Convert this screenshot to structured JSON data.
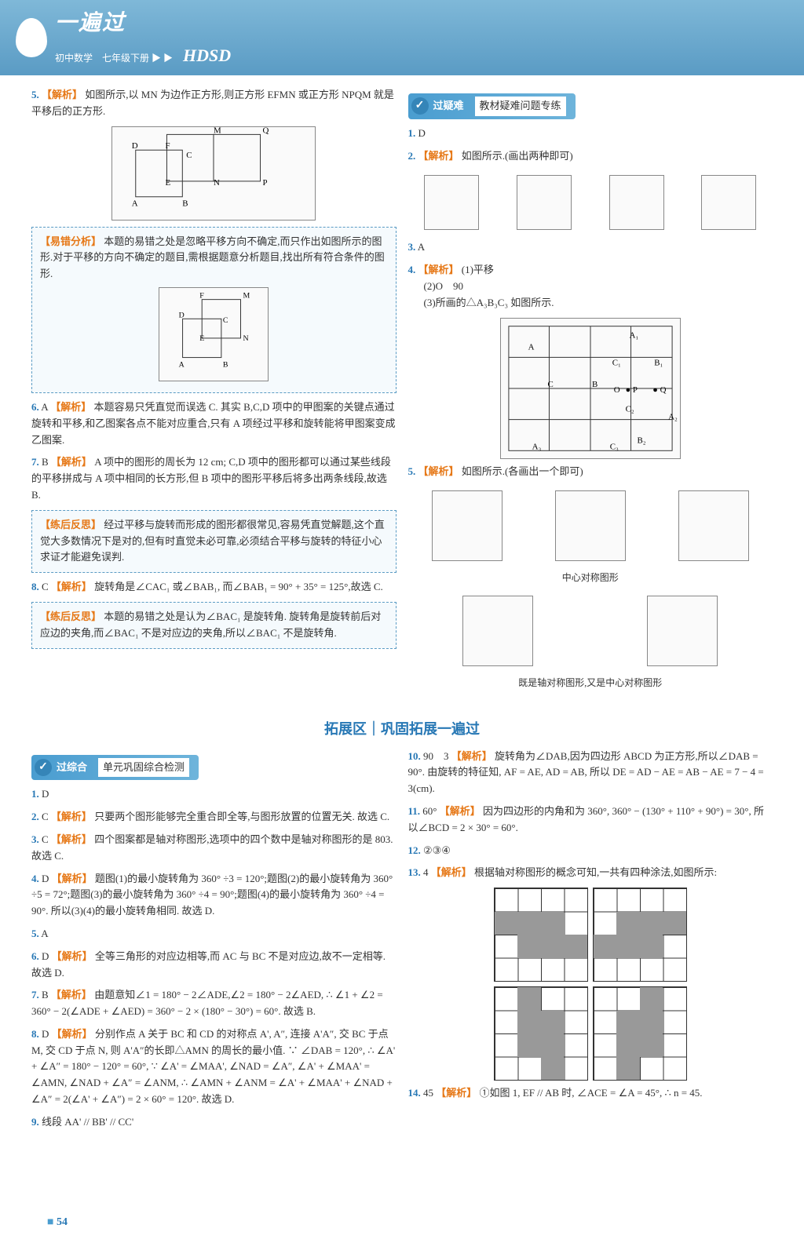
{
  "header": {
    "title": "一遍过",
    "subtitle": "初中数学　七年级下册",
    "brand": "HDSD"
  },
  "leftCol": {
    "item5": {
      "num": "5.",
      "label": "【解析】",
      "text": "如图所示,以 MN 为边作正方形,则正方形 EFMN 或正方形 NPQM 就是平移后的正方形."
    },
    "box1": {
      "label": "【易错分析】",
      "text": "本题的易错之处是忽略平移方向不确定,而只作出如图所示的图形.对于平移的方向不确定的题目,需根据题意分析题目,找出所有符合条件的图形."
    },
    "item6": {
      "num": "6.",
      "ans": "A",
      "label": "【解析】",
      "text": "本题容易只凭直觉而误选 C. 其实 B,C,D 项中的甲图案的关键点通过旋转和平移,和乙图案各点不能对应重合,只有 A 项经过平移和旋转能将甲图案变成乙图案."
    },
    "item7": {
      "num": "7.",
      "ans": "B",
      "label": "【解析】",
      "text": "A 项中的图形的周长为 12 cm; C,D 项中的图形都可以通过某些线段的平移拼成与 A 项中相同的长方形,但 B 项中的图形平移后将多出两条线段,故选 B."
    },
    "box2": {
      "label": "【练后反思】",
      "text": "经过平移与旋转而形成的图形都很常见,容易凭直觉解题,这个直觉大多数情况下是对的,但有时直觉未必可靠,必须结合平移与旋转的特征小心求证才能避免误判."
    },
    "item8": {
      "num": "8.",
      "ans": "C",
      "label": "【解析】",
      "text": "旋转角是∠CAC₁ 或∠BAB₁, 而∠BAB₁ = 90° + 35° = 125°,故选 C."
    },
    "box3": {
      "label": "【练后反思】",
      "text": "本题的易错之处是认为∠BAC₁ 是旋转角. 旋转角是旋转前后对应边的夹角,而∠BAC₁ 不是对应边的夹角,所以∠BAC₁ 不是旋转角."
    }
  },
  "rightCol": {
    "sectionBadge": {
      "title": "过疑难",
      "subtitle": "教材疑难问题专练"
    },
    "item1": {
      "num": "1.",
      "ans": "D"
    },
    "item2": {
      "num": "2.",
      "label": "【解析】",
      "text": "如图所示.(画出两种即可)"
    },
    "item3": {
      "num": "3.",
      "ans": "A"
    },
    "item4": {
      "num": "4.",
      "label": "【解析】",
      "parts": [
        "(1)平移",
        "(2)O　90",
        "(3)所画的△A₃B₃C₃ 如图所示."
      ]
    },
    "item5": {
      "num": "5.",
      "label": "【解析】",
      "text": "如图所示.(各画出一个即可)"
    },
    "caption1": "中心对称图形",
    "caption2": "既是轴对称图形,又是中心对称图形"
  },
  "divider": "拓展区｜巩固拓展一遍过",
  "bottomLeft": {
    "sectionBadge": {
      "title": "过综合",
      "subtitle": "单元巩固综合检测"
    },
    "items": [
      {
        "num": "1.",
        "ans": "D"
      },
      {
        "num": "2.",
        "ans": "C",
        "label": "【解析】",
        "text": "只要两个图形能够完全重合即全等,与图形放置的位置无关. 故选 C."
      },
      {
        "num": "3.",
        "ans": "C",
        "label": "【解析】",
        "text": "四个图案都是轴对称图形,选项中的四个数中是轴对称图形的是 803. 故选 C."
      },
      {
        "num": "4.",
        "ans": "D",
        "label": "【解析】",
        "text": "题图(1)的最小旋转角为 360° ÷3 = 120°;题图(2)的最小旋转角为 360° ÷5 = 72°;题图(3)的最小旋转角为 360° ÷4 = 90°;题图(4)的最小旋转角为 360° ÷4 = 90°. 所以(3)(4)的最小旋转角相同. 故选 D."
      },
      {
        "num": "5.",
        "ans": "A"
      },
      {
        "num": "6.",
        "ans": "D",
        "label": "【解析】",
        "text": "全等三角形的对应边相等,而 AC 与 BC 不是对应边,故不一定相等. 故选 D."
      },
      {
        "num": "7.",
        "ans": "B",
        "label": "【解析】",
        "text": "由题意知∠1 = 180° − 2∠ADE,∠2 = 180° − 2∠AED, ∴ ∠1 + ∠2 = 360° − 2(∠ADE + ∠AED) = 360° − 2 × (180° − 30°) = 60°. 故选 B."
      },
      {
        "num": "8.",
        "ans": "D",
        "label": "【解析】",
        "text": "分别作点 A 关于 BC 和 CD 的对称点 A', A″, 连接 A'A″, 交 BC 于点 M, 交 CD 于点 N, 则 A'A″的长即△AMN 的周长的最小值. ∵ ∠DAB = 120°, ∴ ∠A' + ∠A″ = 180° − 120° = 60°, ∵ ∠A' = ∠MAA', ∠NAD = ∠A″, ∠A' + ∠MAA' = ∠AMN, ∠NAD + ∠A″ = ∠ANM, ∴ ∠AMN + ∠ANM = ∠A' + ∠MAA' + ∠NAD + ∠A″ = 2(∠A' + ∠A″) = 2 × 60° = 120°. 故选 D."
      },
      {
        "num": "9.",
        "text": "线段 AA' // BB' // CC'"
      }
    ]
  },
  "bottomRight": {
    "items": [
      {
        "num": "10.",
        "ans": "90　3",
        "label": "【解析】",
        "text": "旋转角为∠DAB,因为四边形 ABCD 为正方形,所以∠DAB = 90°. 由旋转的特征知, AF = AE, AD = AB, 所以 DE = AD − AE = AB − AE = 7 − 4 = 3(cm)."
      },
      {
        "num": "11.",
        "ans": "60°",
        "label": "【解析】",
        "text": "因为四边形的内角和为 360°, 360° − (130° + 110° + 90°) = 30°, 所以∠BCD = 2 × 30° = 60°."
      },
      {
        "num": "12.",
        "ans": "②③④"
      },
      {
        "num": "13.",
        "ans": "4",
        "label": "【解析】",
        "text": "根据轴对称图形的概念可知,一共有四种涂法,如图所示:"
      },
      {
        "num": "14.",
        "ans": "45",
        "label": "【解析】",
        "text": "①如图 1, EF // AB 时, ∠ACE = ∠A = 45°, ∴ n = 45."
      }
    ]
  },
  "pageNum": "54"
}
